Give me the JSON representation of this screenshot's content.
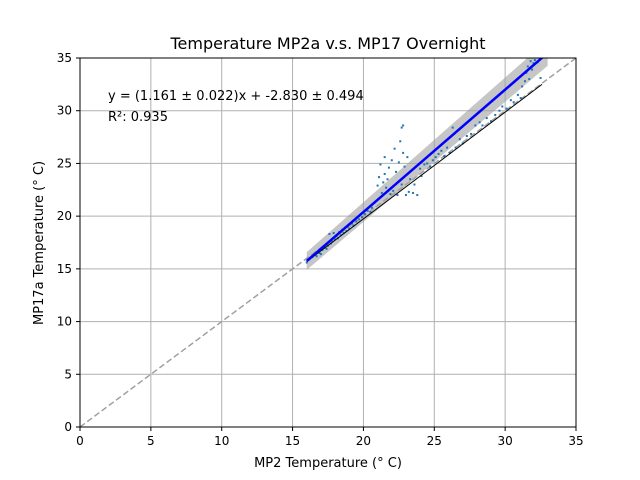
{
  "chart_data": {
    "type": "scatter",
    "title": "Temperature MP2a v.s. MP17 Overnight",
    "xlabel": "MP2 Temperature (° C)",
    "ylabel": "MP17a Temperature (° C)",
    "xlim": [
      0,
      35
    ],
    "ylim": [
      0,
      35
    ],
    "xticks": [
      "0",
      "5",
      "10",
      "15",
      "20",
      "25",
      "30",
      "35"
    ],
    "yticks": [
      "0",
      "5",
      "10",
      "15",
      "20",
      "25",
      "30",
      "35"
    ],
    "grid": true,
    "annotations": {
      "equation": "y = (1.161 ± 0.022)x + -2.830 ± 0.494",
      "r_squared": "R²: 0.935"
    },
    "fit": {
      "slope": 1.161,
      "slope_err": 0.022,
      "intercept": -2.83,
      "intercept_err": 0.494,
      "x_range": [
        16,
        33
      ]
    },
    "reference_line": {
      "slope": 1,
      "intercept": 0,
      "x_range": [
        0,
        35
      ]
    },
    "secondary_line": {
      "x": [
        16,
        32.6
      ],
      "y": [
        15.7,
        32.5
      ]
    },
    "colors": {
      "points": "#1f77b4",
      "fit": "#0000ff",
      "fit_band": "#a0a0a0",
      "reference": "#a0a0a0",
      "secondary": "#000000",
      "grid": "#b0b0b0"
    },
    "series": [
      {
        "values": [
          [
            16.0,
            15.6
          ],
          [
            16.2,
            15.9
          ],
          [
            16.4,
            16.1
          ],
          [
            16.6,
            16.3
          ],
          [
            16.7,
            16.2
          ],
          [
            16.9,
            16.5
          ],
          [
            17.0,
            16.4
          ],
          [
            17.1,
            16.8
          ],
          [
            17.3,
            17.0
          ],
          [
            17.4,
            16.9
          ],
          [
            17.5,
            17.2
          ],
          [
            17.6,
            18.3
          ],
          [
            17.7,
            17.4
          ],
          [
            17.8,
            17.6
          ],
          [
            17.9,
            18.4
          ],
          [
            18.0,
            17.8
          ],
          [
            18.1,
            18.1
          ],
          [
            18.2,
            17.9
          ],
          [
            18.3,
            18.5
          ],
          [
            18.4,
            18.2
          ],
          [
            18.5,
            18.7
          ],
          [
            18.6,
            18.4
          ],
          [
            18.7,
            18.9
          ],
          [
            18.8,
            18.6
          ],
          [
            18.9,
            19.0
          ],
          [
            19.0,
            18.8
          ],
          [
            19.2,
            19.3
          ],
          [
            19.3,
            19.1
          ],
          [
            19.5,
            19.5
          ],
          [
            19.7,
            19.7
          ],
          [
            19.9,
            19.9
          ],
          [
            20.1,
            20.2
          ],
          [
            20.3,
            20.5
          ],
          [
            20.5,
            20.4
          ],
          [
            20.6,
            20.8
          ],
          [
            20.8,
            21.3
          ],
          [
            21.0,
            22.9
          ],
          [
            21.1,
            23.7
          ],
          [
            21.2,
            24.9
          ],
          [
            21.3,
            22.2
          ],
          [
            21.4,
            23.2
          ],
          [
            21.5,
            24.0
          ],
          [
            21.5,
            25.6
          ],
          [
            21.6,
            22.7
          ],
          [
            21.7,
            23.5
          ],
          [
            21.8,
            24.6
          ],
          [
            21.9,
            22.1
          ],
          [
            22.0,
            25.3
          ],
          [
            22.1,
            22.4
          ],
          [
            22.2,
            26.4
          ],
          [
            22.3,
            24.2
          ],
          [
            22.4,
            22.0
          ],
          [
            22.5,
            25.1
          ],
          [
            22.6,
            27.1
          ],
          [
            22.7,
            28.4
          ],
          [
            22.7,
            23.0
          ],
          [
            22.8,
            26.0
          ],
          [
            22.8,
            28.6
          ],
          [
            22.9,
            24.7
          ],
          [
            23.0,
            22.0
          ],
          [
            23.1,
            25.6
          ],
          [
            23.2,
            22.3
          ],
          [
            23.3,
            23.5
          ],
          [
            23.5,
            22.2
          ],
          [
            23.6,
            23.0
          ],
          [
            23.8,
            22.0
          ],
          [
            24.0,
            24.5
          ],
          [
            24.1,
            23.8
          ],
          [
            24.3,
            24.9
          ],
          [
            24.5,
            25.0
          ],
          [
            24.7,
            24.7
          ],
          [
            24.9,
            25.3
          ],
          [
            25.1,
            25.6
          ],
          [
            25.3,
            25.9
          ],
          [
            25.5,
            26.2
          ],
          [
            25.7,
            25.7
          ],
          [
            25.9,
            26.5
          ],
          [
            26.1,
            26.0
          ],
          [
            26.3,
            28.4
          ],
          [
            26.5,
            26.5
          ],
          [
            26.8,
            27.3
          ],
          [
            27.0,
            26.9
          ],
          [
            27.3,
            27.6
          ],
          [
            27.6,
            27.8
          ],
          [
            27.9,
            28.6
          ],
          [
            28.2,
            28.9
          ],
          [
            28.4,
            28.6
          ],
          [
            28.7,
            29.3
          ],
          [
            29.0,
            29.0
          ],
          [
            29.3,
            29.6
          ],
          [
            29.6,
            30.0
          ],
          [
            29.8,
            30.4
          ],
          [
            30.1,
            30.2
          ],
          [
            30.4,
            31.0
          ],
          [
            30.6,
            30.8
          ],
          [
            30.9,
            31.5
          ],
          [
            31.1,
            31.2
          ],
          [
            31.2,
            32.3
          ],
          [
            31.4,
            32.8
          ],
          [
            31.5,
            33.6
          ],
          [
            31.6,
            34.2
          ],
          [
            31.7,
            33.0
          ],
          [
            31.8,
            34.7
          ],
          [
            31.9,
            33.9
          ],
          [
            32.0,
            34.5
          ],
          [
            32.1,
            34.8
          ],
          [
            32.3,
            34.6
          ],
          [
            32.5,
            33.1
          ]
        ]
      }
    ]
  }
}
